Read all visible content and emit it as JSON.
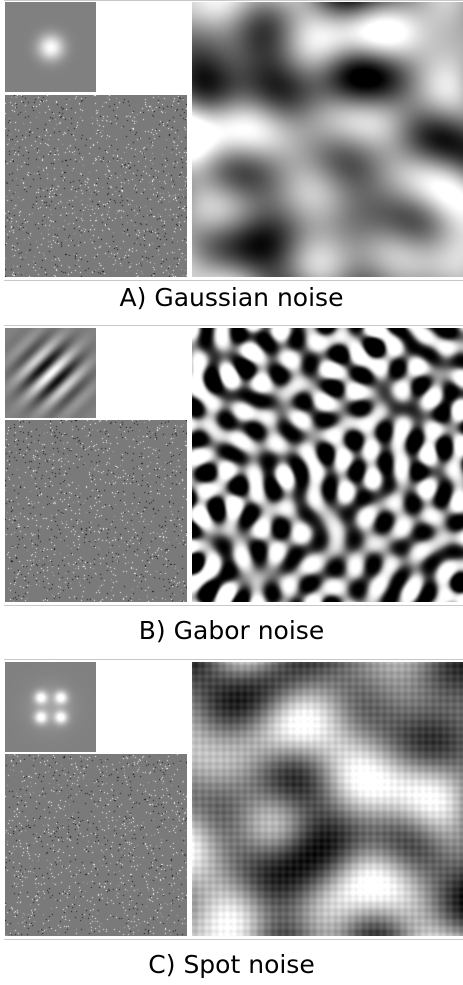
{
  "figure": {
    "panels": [
      {
        "id": "A",
        "caption": "A) Gaussian noise",
        "kernel": "gaussian-blob",
        "texture": "smooth-blotchy-noise"
      },
      {
        "id": "B",
        "caption": "B) Gabor noise",
        "kernel": "oriented-gabor-stripes",
        "texture": "band-limited-gabor-noise"
      },
      {
        "id": "C",
        "caption": "C) Spot noise",
        "kernel": "four-spot-pattern",
        "texture": "spot-noise"
      }
    ]
  }
}
